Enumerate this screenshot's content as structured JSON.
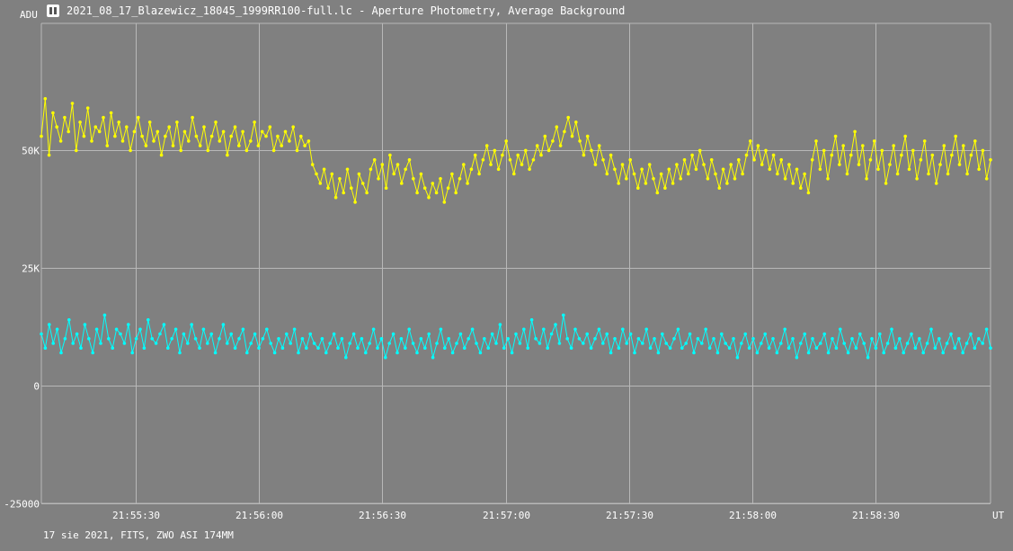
{
  "window": {
    "title": "2021_08_17_Blazewicz_18045_1999RR100-full.lc - Aperture Photometry, Average Background",
    "icon": "app-icon",
    "footer": "17 sie 2021, FITS, ZWO ASI 174MM"
  },
  "colors": {
    "background": "#808080",
    "grid": "#b8b8b8",
    "series1": "#ffff00",
    "series2": "#00ffff"
  },
  "chart_data": {
    "type": "line",
    "title": "",
    "ylabel": "ADU",
    "xlabel": "UT",
    "ylim": [
      -25000,
      77000
    ],
    "xlim": [
      "21:55:07",
      "21:58:58"
    ],
    "yticks": [
      {
        "value": 50000,
        "label": "50K"
      },
      {
        "value": 25000,
        "label": "25K"
      },
      {
        "value": 0,
        "label": "0"
      },
      {
        "value": -25000,
        "label": "-25000"
      }
    ],
    "xticks": [
      "21:55:30",
      "21:56:00",
      "21:56:30",
      "21:57:00",
      "21:57:30",
      "21:58:00",
      "21:58:30"
    ],
    "grid": true,
    "series": [
      {
        "color": "#ffff00",
        "x_start": "21:55:07",
        "x_end": "21:58:58",
        "values": [
          53000,
          61000,
          49000,
          58000,
          55000,
          52000,
          57000,
          54000,
          60000,
          50000,
          56000,
          53000,
          59000,
          52000,
          55000,
          54000,
          57000,
          51000,
          58000,
          53000,
          56000,
          52000,
          55000,
          50000,
          54000,
          57000,
          53000,
          51000,
          56000,
          52000,
          54000,
          49000,
          53000,
          55000,
          51000,
          56000,
          50000,
          54000,
          52000,
          57000,
          53000,
          51000,
          55000,
          50000,
          53000,
          56000,
          52000,
          54000,
          49000,
          53000,
          55000,
          51000,
          54000,
          50000,
          52000,
          56000,
          51000,
          54000,
          53000,
          55000,
          50000,
          53000,
          51000,
          54000,
          52000,
          55000,
          50000,
          53000,
          51000,
          52000,
          47000,
          45000,
          43000,
          46000,
          42000,
          45000,
          40000,
          44000,
          41000,
          46000,
          42000,
          39000,
          45000,
          43000,
          41000,
          46000,
          48000,
          44000,
          47000,
          42000,
          49000,
          45000,
          47000,
          43000,
          46000,
          48000,
          44000,
          41000,
          45000,
          42000,
          40000,
          43000,
          41000,
          44000,
          39000,
          42000,
          45000,
          41000,
          44000,
          47000,
          43000,
          46000,
          49000,
          45000,
          48000,
          51000,
          47000,
          50000,
          46000,
          49000,
          52000,
          48000,
          45000,
          49000,
          47000,
          50000,
          46000,
          48000,
          51000,
          49000,
          53000,
          50000,
          52000,
          55000,
          51000,
          54000,
          57000,
          53000,
          56000,
          52000,
          49000,
          53000,
          50000,
          47000,
          51000,
          48000,
          45000,
          49000,
          46000,
          43000,
          47000,
          44000,
          48000,
          45000,
          42000,
          46000,
          43000,
          47000,
          44000,
          41000,
          45000,
          42000,
          46000,
          43000,
          47000,
          44000,
          48000,
          45000,
          49000,
          46000,
          50000,
          47000,
          44000,
          48000,
          45000,
          42000,
          46000,
          43000,
          47000,
          44000,
          48000,
          45000,
          49000,
          52000,
          48000,
          51000,
          47000,
          50000,
          46000,
          49000,
          45000,
          48000,
          44000,
          47000,
          43000,
          46000,
          42000,
          45000,
          41000,
          48000,
          52000,
          46000,
          50000,
          44000,
          49000,
          53000,
          47000,
          51000,
          45000,
          49000,
          54000,
          47000,
          51000,
          44000,
          48000,
          52000,
          46000,
          50000,
          43000,
          47000,
          51000,
          45000,
          49000,
          53000,
          46000,
          50000,
          44000,
          48000,
          52000,
          45000,
          49000,
          43000,
          47000,
          51000,
          45000,
          49000,
          53000,
          47000,
          51000,
          45000,
          49000,
          52000,
          46000,
          50000,
          44000,
          48000
        ],
        "markers": true
      },
      {
        "color": "#00ffff",
        "x_start": "21:55:07",
        "x_end": "21:58:58",
        "values": [
          11000,
          8000,
          13000,
          9000,
          12000,
          7000,
          10000,
          14000,
          9000,
          11000,
          8000,
          13000,
          10000,
          7000,
          12000,
          9000,
          15000,
          10000,
          8000,
          12000,
          11000,
          9000,
          13000,
          7000,
          10000,
          12000,
          8000,
          14000,
          10000,
          9000,
          11000,
          13000,
          8000,
          10000,
          12000,
          7000,
          11000,
          9000,
          13000,
          10000,
          8000,
          12000,
          9000,
          11000,
          7000,
          10000,
          13000,
          9000,
          11000,
          8000,
          10000,
          12000,
          7000,
          9000,
          11000,
          8000,
          10000,
          12000,
          9000,
          7000,
          10000,
          8000,
          11000,
          9000,
          12000,
          7000,
          10000,
          8000,
          11000,
          9000,
          8000,
          10000,
          7000,
          9000,
          11000,
          8000,
          10000,
          6000,
          9000,
          11000,
          8000,
          10000,
          7000,
          9000,
          12000,
          8000,
          10000,
          6000,
          9000,
          11000,
          7000,
          10000,
          8000,
          12000,
          9000,
          7000,
          10000,
          8000,
          11000,
          6000,
          9000,
          12000,
          8000,
          10000,
          7000,
          9000,
          11000,
          8000,
          10000,
          12000,
          9000,
          7000,
          10000,
          8000,
          11000,
          9000,
          13000,
          8000,
          10000,
          7000,
          11000,
          9000,
          12000,
          8000,
          14000,
          10000,
          9000,
          12000,
          8000,
          11000,
          13000,
          9000,
          15000,
          10000,
          8000,
          12000,
          10000,
          9000,
          11000,
          8000,
          10000,
          12000,
          9000,
          11000,
          7000,
          10000,
          8000,
          12000,
          9000,
          11000,
          7000,
          10000,
          9000,
          12000,
          8000,
          10000,
          7000,
          11000,
          9000,
          8000,
          10000,
          12000,
          8000,
          9000,
          11000,
          7000,
          10000,
          9000,
          12000,
          8000,
          10000,
          7000,
          11000,
          9000,
          8000,
          10000,
          6000,
          9000,
          11000,
          8000,
          10000,
          7000,
          9000,
          11000,
          8000,
          10000,
          7000,
          9000,
          12000,
          8000,
          10000,
          6000,
          9000,
          11000,
          7000,
          10000,
          8000,
          9000,
          11000,
          7000,
          10000,
          8000,
          12000,
          9000,
          7000,
          10000,
          8000,
          11000,
          9000,
          6000,
          10000,
          8000,
          11000,
          7000,
          9000,
          12000,
          8000,
          10000,
          7000,
          9000,
          11000,
          8000,
          10000,
          7000,
          9000,
          12000,
          8000,
          10000,
          7000,
          9000,
          11000,
          8000,
          10000,
          7000,
          9000,
          11000,
          8000,
          10000,
          9000,
          12000,
          8000
        ],
        "markers": true
      }
    ]
  }
}
